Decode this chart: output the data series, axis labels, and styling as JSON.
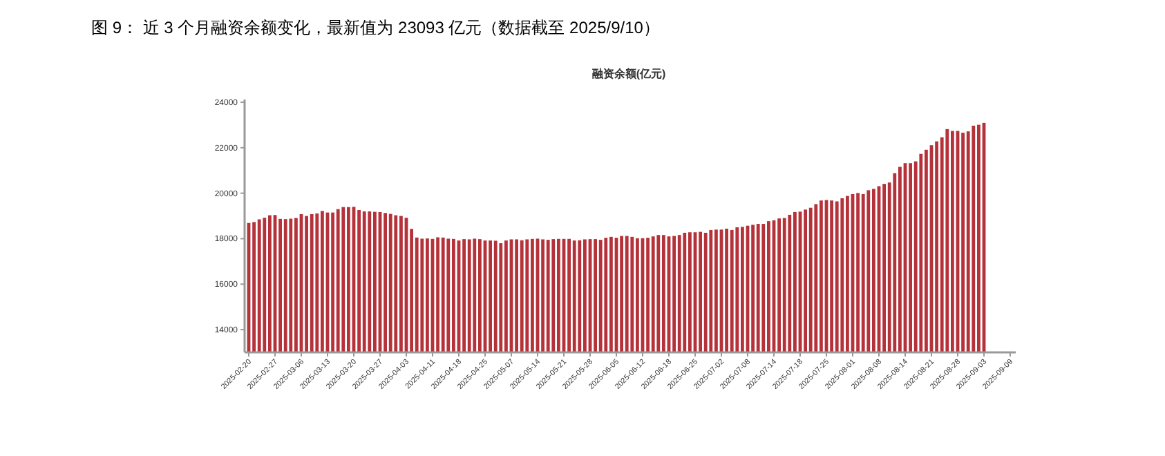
{
  "chart_data": {
    "type": "bar",
    "title": "图 9：   近 3 个月融资余额变化，最新值为 23093 亿元（数据截至 2025/9/10）",
    "subtitle": "融资余额(亿元)",
    "categories": [
      "2025-02-20",
      null,
      null,
      null,
      null,
      "2025-02-27",
      null,
      null,
      null,
      null,
      "2025-03-06",
      null,
      null,
      null,
      null,
      "2025-03-13",
      null,
      null,
      null,
      null,
      "2025-03-20",
      null,
      null,
      null,
      null,
      "2025-03-27",
      null,
      null,
      null,
      null,
      "2025-04-03",
      null,
      null,
      null,
      null,
      "2025-04-11",
      null,
      null,
      null,
      null,
      "2025-04-18",
      null,
      null,
      null,
      null,
      "2025-04-25",
      null,
      null,
      null,
      null,
      "2025-05-07",
      null,
      null,
      null,
      null,
      "2025-05-14",
      null,
      null,
      null,
      null,
      "2025-05-21",
      null,
      null,
      null,
      null,
      "2025-05-28",
      null,
      null,
      null,
      null,
      "2025-06-05",
      null,
      null,
      null,
      null,
      "2025-06-12",
      null,
      null,
      null,
      null,
      "2025-06-18",
      null,
      null,
      null,
      null,
      "2025-06-25",
      null,
      null,
      null,
      null,
      "2025-07-02",
      null,
      null,
      null,
      null,
      "2025-07-08",
      null,
      null,
      null,
      null,
      "2025-07-14",
      null,
      null,
      null,
      null,
      "2025-07-18",
      null,
      null,
      null,
      null,
      "2025-07-25",
      null,
      null,
      null,
      null,
      "2025-08-01",
      null,
      null,
      null,
      null,
      "2025-08-08",
      null,
      null,
      null,
      null,
      "2025-08-14",
      null,
      null,
      null,
      null,
      "2025-08-21",
      null,
      null,
      null,
      null,
      "2025-08-28",
      null,
      null,
      null,
      null,
      "2025-09-03",
      null,
      null,
      null,
      null,
      "2025-09-09"
    ],
    "values": [
      18690,
      18730,
      18850,
      18920,
      19030,
      19040,
      18870,
      18860,
      18880,
      18910,
      19080,
      19000,
      19080,
      19110,
      19220,
      19150,
      19150,
      19300,
      19390,
      19390,
      19400,
      19260,
      19200,
      19200,
      19180,
      19170,
      19130,
      19090,
      19030,
      19000,
      18920,
      18430,
      18050,
      18000,
      18010,
      17990,
      18060,
      18050,
      18000,
      17990,
      17920,
      17980,
      17970,
      18000,
      17980,
      17920,
      17920,
      17910,
      17800,
      17920,
      17970,
      17970,
      17930,
      17970,
      17990,
      18000,
      17970,
      17950,
      17980,
      17990,
      17990,
      17990,
      17920,
      17930,
      17970,
      17980,
      17980,
      17950,
      18040,
      18080,
      18040,
      18120,
      18120,
      18080,
      18020,
      18020,
      18040,
      18100,
      18160,
      18160,
      18100,
      18120,
      18160,
      18260,
      18280,
      18280,
      18300,
      18260,
      18380,
      18400,
      18400,
      18440,
      18380,
      18500,
      18520,
      18570,
      18610,
      18650,
      18650,
      18770,
      18810,
      18890,
      18910,
      19050,
      19170,
      19190,
      19280,
      19360,
      19520,
      19680,
      19700,
      19680,
      19640,
      19780,
      19880,
      19960,
      20010,
      19960,
      20130,
      20190,
      20310,
      20410,
      20470,
      20880,
      21160,
      21320,
      21320,
      21400,
      21730,
      21910,
      22110,
      22280,
      22460,
      22820,
      22740,
      22740,
      22660,
      22720,
      22970,
      23010,
      23093,
      null,
      null,
      null,
      null,
      null
    ],
    "color": "#b5323a",
    "ylim": [
      13000,
      24000
    ],
    "yticks": [
      14000,
      16000,
      18000,
      20000,
      22000,
      24000
    ]
  }
}
